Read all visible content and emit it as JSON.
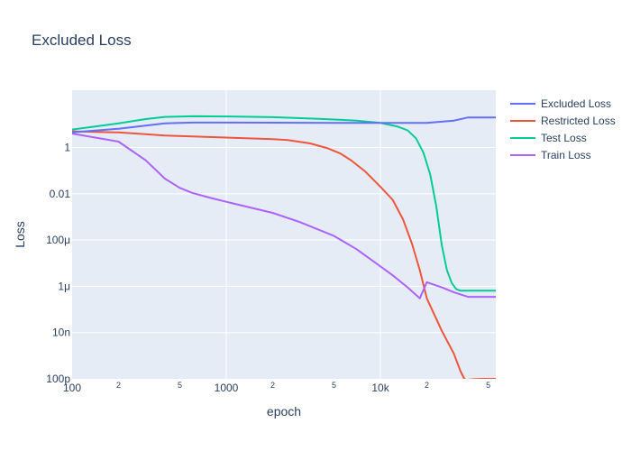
{
  "chart_data": {
    "type": "line",
    "title": "Excluded Loss",
    "xlabel": "epoch",
    "ylabel": "Loss",
    "x_scale": "log",
    "y_scale": "log",
    "xlim": [
      100,
      56000
    ],
    "ylim": [
      1e-10,
      300
    ],
    "grid": true,
    "legend_position": "top-right outside",
    "x_ticks_major": [
      {
        "value": 100,
        "label": "100"
      },
      {
        "value": 1000,
        "label": "1000"
      },
      {
        "value": 10000,
        "label": "10k"
      }
    ],
    "x_ticks_minor": [
      {
        "value": 200,
        "label": "2"
      },
      {
        "value": 500,
        "label": "5"
      },
      {
        "value": 2000,
        "label": "2"
      },
      {
        "value": 5000,
        "label": "5"
      },
      {
        "value": 20000,
        "label": "2"
      },
      {
        "value": 50000,
        "label": "5"
      }
    ],
    "y_ticks": [
      {
        "value": 1,
        "label": "1"
      },
      {
        "value": 0.01,
        "label": "0.01"
      },
      {
        "value": 0.0001,
        "label": "100μ"
      },
      {
        "value": 1e-06,
        "label": "1μ"
      },
      {
        "value": 1e-08,
        "label": "10n"
      },
      {
        "value": 1e-10,
        "label": "100p"
      }
    ],
    "series": [
      {
        "name": "Excluded Loss",
        "color": "#636efa",
        "x": [
          100,
          200,
          400,
          600,
          1000,
          2000,
          5000,
          10000,
          20000,
          30000,
          37000,
          45000,
          56000
        ],
        "y": [
          4.5,
          6.5,
          11,
          12,
          12,
          11.8,
          11.5,
          11.5,
          11.5,
          14.5,
          20,
          20,
          20
        ]
      },
      {
        "name": "Restricted Loss",
        "color": "#ef553b",
        "x": [
          100,
          200,
          400,
          1000,
          2000,
          2500,
          3500,
          4500,
          5500,
          6500,
          8000,
          10000,
          12000,
          14000,
          16000,
          18000,
          20000,
          25000,
          30000,
          33000,
          35000,
          36000,
          37000,
          38000,
          45000,
          56000
        ],
        "y": [
          5,
          4.5,
          3.3,
          2.7,
          2.3,
          2.1,
          1.5,
          0.95,
          0.55,
          0.27,
          0.09,
          0.02,
          0.0055,
          0.0008,
          7e-05,
          5e-06,
          3e-07,
          1.2e-08,
          1.2e-09,
          2.2e-10,
          1e-10,
          9e-11,
          9e-11,
          9.5e-11,
          1e-10,
          1e-10
        ]
      },
      {
        "name": "Test Loss",
        "color": "#00cc96",
        "x": [
          100,
          200,
          300,
          400,
          600,
          1000,
          2000,
          4000,
          7000,
          10000,
          13000,
          15000,
          17000,
          19000,
          21000,
          23000,
          25000,
          27000,
          29000,
          31000,
          33000,
          35000,
          40000,
          56000
        ],
        "y": [
          6,
          11,
          17,
          21,
          22.5,
          22,
          20.5,
          17.5,
          14.5,
          11.5,
          8,
          5.5,
          2.5,
          0.6,
          0.07,
          0.003,
          6e-05,
          5e-06,
          1.4e-06,
          7.5e-07,
          6.5e-07,
          6.5e-07,
          6.5e-07,
          6.5e-07
        ]
      },
      {
        "name": "Train Loss",
        "color": "#ab63fa",
        "x": [
          100,
          200,
          300,
          400,
          500,
          600,
          800,
          1000,
          2000,
          3000,
          5000,
          7000,
          9000,
          12000,
          15000,
          18000,
          20000,
          25000,
          30000,
          37000,
          45000,
          56000
        ],
        "y": [
          4,
          1.8,
          0.28,
          0.045,
          0.018,
          0.011,
          0.0065,
          0.0045,
          0.0015,
          0.0006,
          0.00015,
          4e-05,
          1.2e-05,
          3e-06,
          9e-07,
          3e-07,
          1.5e-06,
          9e-07,
          5.5e-07,
          3.5e-07,
          3.5e-07,
          3.5e-07
        ]
      }
    ]
  }
}
